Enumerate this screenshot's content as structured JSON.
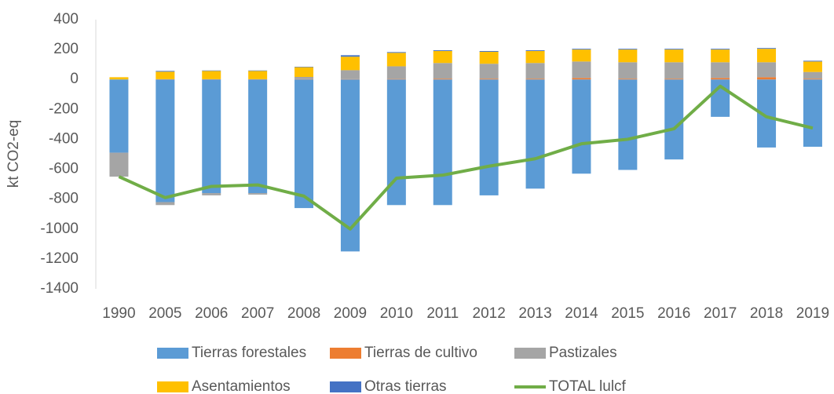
{
  "chart_data": {
    "type": "bar",
    "y_label": "kt CO2-eq",
    "categories": [
      "1990",
      "2005",
      "2006",
      "2007",
      "2008",
      "2009",
      "2010",
      "2011",
      "2012",
      "2013",
      "2014",
      "2015",
      "2016",
      "2017",
      "2018",
      "2019"
    ],
    "series": [
      {
        "name": "Tierras forestales",
        "color": "#5b9bd5",
        "values": [
          -490,
          -820,
          -760,
          -760,
          -860,
          -1150,
          -840,
          -840,
          -775,
          -730,
          -630,
          -605,
          -535,
          -250,
          -455,
          -450
        ]
      },
      {
        "name": "Tierras de cultivo",
        "color": "#ed7d31",
        "values": [
          0,
          2,
          2,
          2,
          2,
          2,
          3,
          5,
          5,
          5,
          10,
          5,
          5,
          10,
          15,
          5
        ]
      },
      {
        "name": "Pastizales",
        "color": "#a5a5a5",
        "values": [
          -160,
          -20,
          -15,
          -10,
          15,
          60,
          85,
          105,
          100,
          105,
          110,
          110,
          110,
          105,
          100,
          45
        ]
      },
      {
        "name": "Asentamientos",
        "color": "#ffc000",
        "values": [
          15,
          50,
          55,
          55,
          65,
          90,
          90,
          80,
          80,
          80,
          80,
          85,
          85,
          85,
          90,
          70
        ]
      },
      {
        "name": "Otras tierras",
        "color": "#4472c4",
        "values": [
          0,
          5,
          3,
          3,
          3,
          10,
          5,
          5,
          5,
          5,
          5,
          5,
          5,
          5,
          5,
          5
        ]
      },
      {
        "name": "TOTAL lulcf",
        "color": "#70ad47",
        "type": "line",
        "values": [
          -650,
          -790,
          -715,
          -705,
          -780,
          -1000,
          -660,
          -640,
          -580,
          -530,
          -430,
          -400,
          -330,
          -45,
          -250,
          -325
        ]
      }
    ],
    "ylim": [
      -1400,
      400
    ],
    "yticks": [
      -1400,
      -1200,
      -1000,
      -800,
      -600,
      -400,
      -200,
      0,
      200,
      400
    ],
    "stacked": true,
    "grid": false,
    "legend": "bottom"
  }
}
